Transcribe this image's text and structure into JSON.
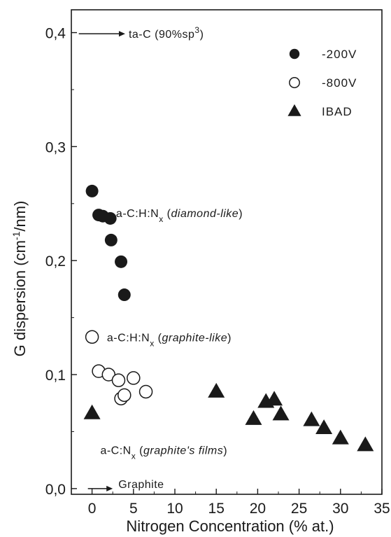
{
  "chart_data": {
    "type": "scatter",
    "xlabel": "Nitrogen Concentration (% at.)",
    "ylabel_parts": {
      "pre": "G dispersion (cm",
      "sup": "-1",
      "post": "/nm)"
    },
    "xlim": [
      -2.5,
      35
    ],
    "ylim": [
      -0.005,
      0.42
    ],
    "x_ticks": [
      0,
      5,
      10,
      15,
      20,
      25,
      30,
      35
    ],
    "x_tick_labels": [
      "0",
      "5",
      "10",
      "15",
      "20",
      "25",
      "30",
      "35"
    ],
    "y_ticks": [
      0.0,
      0.1,
      0.2,
      0.3,
      0.4
    ],
    "y_tick_labels": [
      "0,0",
      "0,1",
      "0,2",
      "0,3",
      "0,4"
    ],
    "series": [
      {
        "name": "-200V",
        "marker": "filled-circle",
        "points": [
          [
            0.0,
            0.261
          ],
          [
            0.8,
            0.24
          ],
          [
            1.3,
            0.239
          ],
          [
            2.2,
            0.237
          ],
          [
            2.3,
            0.218
          ],
          [
            3.5,
            0.199
          ],
          [
            3.9,
            0.17
          ]
        ]
      },
      {
        "name": "-800V",
        "marker": "open-circle",
        "points": [
          [
            0.0,
            0.133
          ],
          [
            0.8,
            0.103
          ],
          [
            2.0,
            0.1
          ],
          [
            3.2,
            0.095
          ],
          [
            3.5,
            0.079
          ],
          [
            3.9,
            0.082
          ],
          [
            5.0,
            0.097
          ],
          [
            6.5,
            0.085
          ]
        ]
      },
      {
        "name": "IBAD",
        "marker": "filled-triangle",
        "points": [
          [
            0.0,
            0.066
          ],
          [
            15.0,
            0.085
          ],
          [
            19.5,
            0.061
          ],
          [
            21.0,
            0.076
          ],
          [
            22.0,
            0.078
          ],
          [
            22.8,
            0.065
          ],
          [
            26.5,
            0.06
          ],
          [
            28.0,
            0.053
          ],
          [
            30.0,
            0.044
          ],
          [
            33.0,
            0.038
          ]
        ]
      }
    ],
    "legend": {
      "placement": "top-right"
    },
    "annotations": {
      "tac": {
        "pre": "ta-C (90%sp",
        "sup": "3",
        "post": ")",
        "arrow_from_x": -1.6,
        "arrow_to_x": 4.0,
        "y": 0.399
      },
      "graphite": {
        "text": "Graphite",
        "arrow_from_x": -0.5,
        "arrow_to_x": 2.5,
        "y": 0.0
      },
      "diamond": {
        "pre": "a-C:H:N",
        "sub": "x",
        "paren_open": " (",
        "ital": "diamond-like",
        "paren_close": ")",
        "x": 2.9,
        "y": 0.242
      },
      "graphite_like": {
        "pre": "a-C:H:N",
        "sub": "x",
        "paren_open": " (",
        "ital": "graphite-like",
        "paren_close": ")",
        "x": 1.8,
        "y": 0.133
      },
      "graphite_films": {
        "pre": "a-C:N",
        "sub": "x",
        "paren_open": " (",
        "ital": "graphite's films",
        "paren_close": ")",
        "x": 1.0,
        "y": 0.034
      }
    },
    "colors": {
      "marker": "#1a1a1a",
      "axis": "#1a1a1a",
      "background": "#ffffff"
    }
  }
}
